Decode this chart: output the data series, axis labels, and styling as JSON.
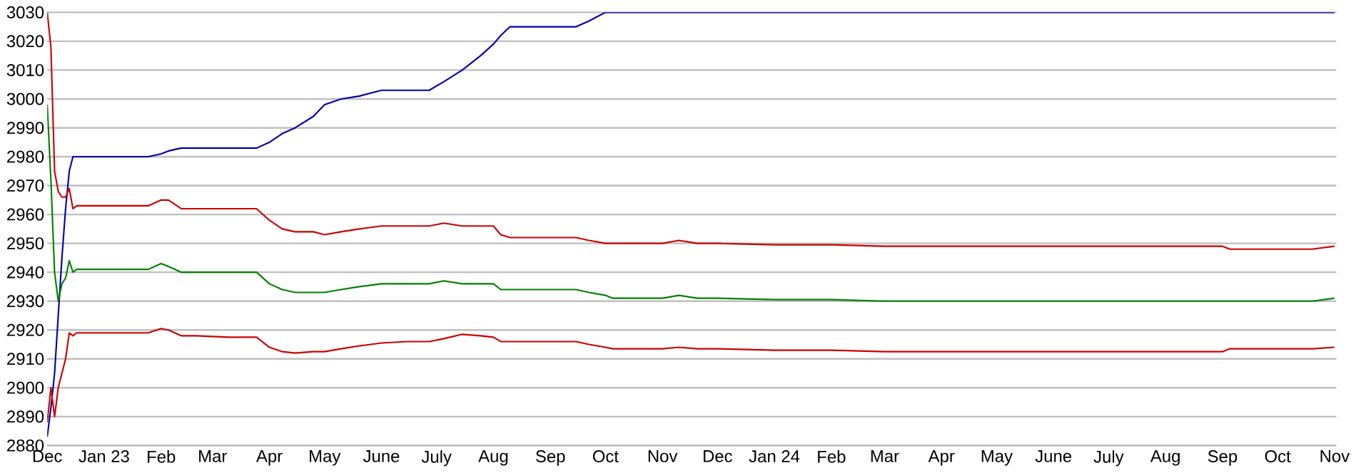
{
  "chart_data": {
    "type": "line",
    "x": [
      "2022-12-01",
      "2022-12-03",
      "2022-12-05",
      "2022-12-07",
      "2022-12-09",
      "2022-12-11",
      "2022-12-13",
      "2022-12-15",
      "2022-12-17",
      "2022-12-20",
      "2022-12-25",
      "2023-01-10",
      "2023-01-25",
      "2023-02-01",
      "2023-02-05",
      "2023-02-12",
      "2023-02-20",
      "2023-03-10",
      "2023-03-25",
      "2023-04-01",
      "2023-04-08",
      "2023-04-15",
      "2023-04-25",
      "2023-05-01",
      "2023-05-10",
      "2023-05-20",
      "2023-06-01",
      "2023-06-15",
      "2023-06-27",
      "2023-07-05",
      "2023-07-15",
      "2023-07-25",
      "2023-08-01",
      "2023-08-05",
      "2023-08-10",
      "2023-08-20",
      "2023-09-01",
      "2023-09-15",
      "2023-09-22",
      "2023-10-01",
      "2023-10-05",
      "2023-10-15",
      "2023-11-01",
      "2023-11-10",
      "2023-11-20",
      "2023-12-01",
      "2024-01-01",
      "2024-02-01",
      "2024-03-01",
      "2024-04-01",
      "2024-05-01",
      "2024-06-01",
      "2024-07-01",
      "2024-08-01",
      "2024-09-01",
      "2024-09-05",
      "2024-10-01",
      "2024-10-20",
      "2024-11-01"
    ],
    "series": [
      {
        "color": "#0000aa",
        "values": [
          2883,
          2893,
          2905,
          2925,
          2945,
          2962,
          2975,
          2980,
          2980,
          2980,
          2980,
          2980,
          2980,
          2981,
          2982,
          2983,
          2983,
          2983,
          2983,
          2985,
          2988,
          2990,
          2994,
          2998,
          3000,
          3001,
          3003,
          3003,
          3003,
          3006,
          3010,
          3015,
          3019,
          3022,
          3025,
          3025,
          3025,
          3025,
          3027,
          3030,
          3030,
          3030,
          3030,
          3030,
          3030,
          3030,
          3030,
          3030,
          3030,
          3030,
          3030,
          3030,
          3030,
          3030,
          3030,
          3030,
          3030,
          3030,
          3030
        ]
      },
      {
        "color": "#cc0000",
        "values": [
          3030,
          3018,
          2975,
          2968,
          2966,
          2966,
          2969,
          2962,
          2963,
          2963,
          2963,
          2963,
          2963,
          2965,
          2965,
          2962,
          2962,
          2962,
          2962,
          2958,
          2955,
          2954,
          2954,
          2953,
          2954,
          2955,
          2956,
          2956,
          2956,
          2957,
          2956,
          2956,
          2956,
          2953,
          2952,
          2952,
          2952,
          2952,
          2951,
          2950,
          2950,
          2950,
          2950,
          2951,
          2950,
          2950,
          2949.5,
          2949.5,
          2949,
          2949,
          2949,
          2949,
          2949,
          2949,
          2949,
          2948,
          2948,
          2948,
          2949
        ]
      },
      {
        "color": "#008000",
        "values": [
          2998,
          2972,
          2940,
          2930,
          2936,
          2938,
          2944,
          2940,
          2941,
          2941,
          2941,
          2941,
          2941,
          2943,
          2942,
          2940,
          2940,
          2940,
          2940,
          2936,
          2934,
          2933,
          2933,
          2933,
          2934,
          2935,
          2936,
          2936,
          2936,
          2937,
          2936,
          2936,
          2936,
          2934,
          2934,
          2934,
          2934,
          2934,
          2933,
          2932,
          2931,
          2931,
          2931,
          2932,
          2931,
          2931,
          2930.5,
          2930.5,
          2930,
          2930,
          2930,
          2930,
          2930,
          2930,
          2930,
          2930,
          2930,
          2930,
          2931
        ]
      },
      {
        "color": "#cc0000",
        "values": [
          2888,
          2900,
          2890,
          2900,
          2905,
          2910,
          2919,
          2918,
          2919,
          2919,
          2919,
          2919,
          2919,
          2920.5,
          2920,
          2918,
          2918,
          2917.5,
          2917.5,
          2914,
          2912.5,
          2912,
          2912.5,
          2912.5,
          2913.5,
          2914.5,
          2915.5,
          2916,
          2916,
          2917,
          2918.5,
          2918,
          2917.5,
          2916,
          2916,
          2916,
          2916,
          2916,
          2915,
          2914,
          2913.5,
          2913.5,
          2913.5,
          2914,
          2913.5,
          2913.5,
          2913,
          2913,
          2912.5,
          2912.5,
          2912.5,
          2912.5,
          2912.5,
          2912.5,
          2912.5,
          2913.5,
          2913.5,
          2913.5,
          2914
        ]
      }
    ],
    "xlim": [
      "2022-12-01",
      "2024-11-02"
    ],
    "xticks": [
      {
        "value": "2022-12-01",
        "label": "Dec"
      },
      {
        "value": "2023-01-01",
        "label": "Jan 23"
      },
      {
        "value": "2023-02-01",
        "label": "Feb"
      },
      {
        "value": "2023-03-01",
        "label": "Mar"
      },
      {
        "value": "2023-04-01",
        "label": "Apr"
      },
      {
        "value": "2023-05-01",
        "label": "May"
      },
      {
        "value": "2023-06-01",
        "label": "June"
      },
      {
        "value": "2023-07-01",
        "label": "July"
      },
      {
        "value": "2023-08-01",
        "label": "Aug"
      },
      {
        "value": "2023-09-01",
        "label": "Sep"
      },
      {
        "value": "2023-10-01",
        "label": "Oct"
      },
      {
        "value": "2023-11-01",
        "label": "Nov"
      },
      {
        "value": "2023-12-01",
        "label": "Dec"
      },
      {
        "value": "2024-01-01",
        "label": "Jan 24"
      },
      {
        "value": "2024-02-01",
        "label": "Feb"
      },
      {
        "value": "2024-03-01",
        "label": "Mar"
      },
      {
        "value": "2024-04-01",
        "label": "Apr"
      },
      {
        "value": "2024-05-01",
        "label": "May"
      },
      {
        "value": "2024-06-01",
        "label": "June"
      },
      {
        "value": "2024-07-01",
        "label": "July"
      },
      {
        "value": "2024-08-01",
        "label": "Aug"
      },
      {
        "value": "2024-09-01",
        "label": "Sep"
      },
      {
        "value": "2024-10-01",
        "label": "Oct"
      },
      {
        "value": "2024-11-01",
        "label": "Nov"
      }
    ],
    "ylim": [
      2880,
      3030
    ],
    "yticks": [
      2880,
      2890,
      2900,
      2910,
      2920,
      2930,
      2940,
      2950,
      2960,
      2970,
      2980,
      2990,
      3000,
      3010,
      3020,
      3030
    ],
    "grid": "y",
    "marker": "none",
    "line_style": "solid"
  }
}
